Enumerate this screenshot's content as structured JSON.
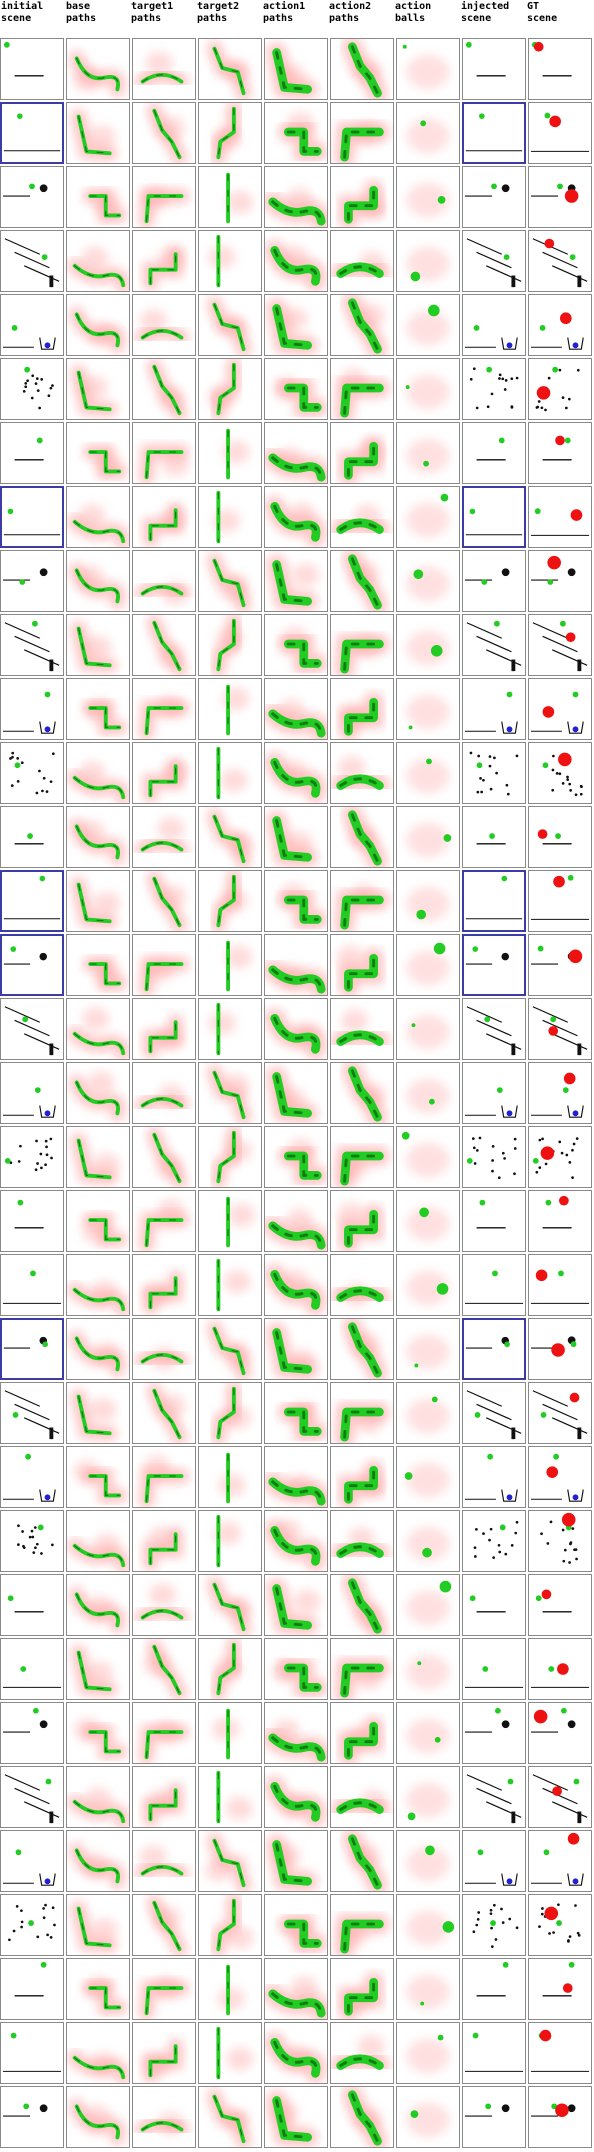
{
  "headers": [
    "initial\nscene",
    "base\npaths",
    "target1\npaths",
    "target2\npaths",
    "action1\npaths",
    "action2\npaths",
    "action\nballs",
    "injected\nscene",
    "GT\nscene"
  ],
  "palette": {
    "green": "#22cc22",
    "dark_green": "#0a5a0a",
    "red_fade": "#ff9a9a",
    "red": "#ee1111",
    "blue": "#2222cc",
    "frame": "#3c3ca6",
    "black": "#111111",
    "cell_border": "#8a8a8a"
  },
  "rows": 33,
  "blue_frame_rows": [
    1,
    7,
    13,
    14,
    20
  ]
}
